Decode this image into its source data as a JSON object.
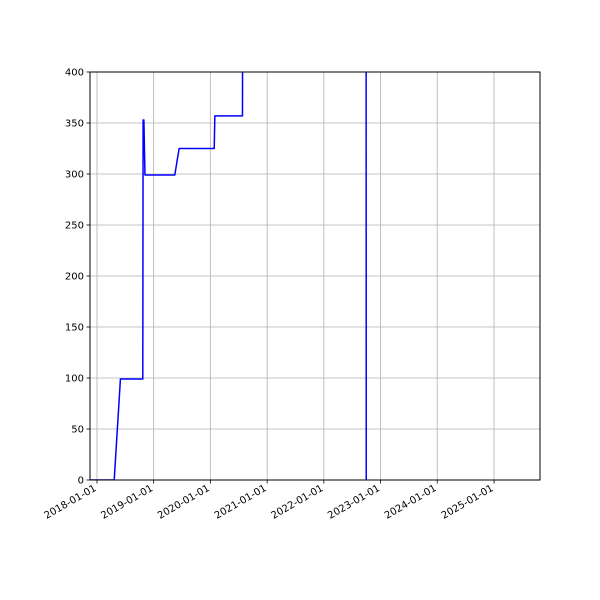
{
  "chart_data": {
    "type": "line",
    "title": "",
    "xlabel": "",
    "ylabel": "",
    "xlim": [
      "2017-11-17",
      "2025-10-24"
    ],
    "ylim": [
      0,
      400
    ],
    "grid": true,
    "x_ticks": [
      "2018-01-01",
      "2019-01-01",
      "2020-01-01",
      "2021-01-01",
      "2022-01-01",
      "2023-01-01",
      "2024-01-01",
      "2025-01-01"
    ],
    "y_ticks": [
      0,
      50,
      100,
      150,
      200,
      250,
      300,
      350,
      400
    ],
    "y_tick_labels": [
      "0",
      "50",
      "100",
      "150",
      "200",
      "250",
      "300",
      "350",
      "400"
    ],
    "series": [
      {
        "color": "#0000ff",
        "points": [
          [
            "2017-11-17",
            0
          ],
          [
            "2018-04-22",
            0
          ],
          [
            "2018-06-01",
            99
          ],
          [
            "2018-10-23",
            99
          ],
          [
            "2018-10-25",
            353
          ],
          [
            "2018-10-30",
            353
          ],
          [
            "2018-11-06",
            299
          ],
          [
            "2019-05-17",
            299
          ],
          [
            "2019-06-14",
            325
          ],
          [
            "2020-01-26",
            325
          ],
          [
            "2020-01-30",
            357
          ],
          [
            "2020-07-26",
            357
          ],
          [
            "2020-07-28",
            600
          ],
          [
            "2022-09-30",
            600
          ],
          [
            "2022-10-01",
            0
          ]
        ]
      }
    ]
  }
}
